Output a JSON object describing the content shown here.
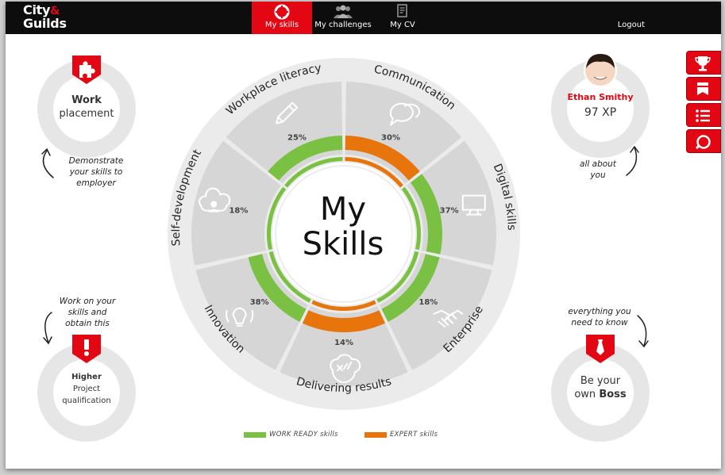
{
  "header": {
    "logo_top": "City",
    "logo_amp": "&",
    "logo_bottom": "Guilds",
    "tabs": [
      {
        "label": "My skills",
        "icon": "lifebuoy-icon",
        "active": true
      },
      {
        "label": "My challenges",
        "icon": "people-icon",
        "active": false
      },
      {
        "label": "My CV",
        "icon": "document-icon",
        "active": false
      }
    ],
    "logout_label": "Logout"
  },
  "colors": {
    "brand_red": "#e30613",
    "work_ready_green": "#7ac143",
    "expert_orange": "#e8740c",
    "segment_gray": "#d6d6d6",
    "ring_gray": "#ebebeb"
  },
  "wheel": {
    "center_line1": "My",
    "center_line2": "Skills",
    "segments": [
      {
        "name": "Communication",
        "percent": "30%",
        "value": 30,
        "type": "expert",
        "icon": "speech-bubble-icon"
      },
      {
        "name": "Digital skills",
        "percent": "37%",
        "value": 37,
        "type": "work_ready",
        "icon": "monitor-icon"
      },
      {
        "name": "Enterprise",
        "percent": "18%",
        "value": 18,
        "type": "work_ready",
        "icon": "handshake-icon"
      },
      {
        "name": "Delivering results",
        "percent": "14%",
        "value": 14,
        "type": "expert",
        "icon": "checklist-cloud-icon"
      },
      {
        "name": "Innovation",
        "percent": "38%",
        "value": 38,
        "type": "work_ready",
        "icon": "lightbulb-icon"
      },
      {
        "name": "Self-development",
        "percent": "18%",
        "value": 18,
        "type": "none",
        "icon": "brain-cloud-icon"
      },
      {
        "name": "Workplace literacy",
        "percent": "25%",
        "value": 25,
        "type": "work_ready",
        "icon": "pencil-icon"
      }
    ]
  },
  "legend": {
    "work_ready": "WORK READY skills",
    "expert": "EXPERT skills"
  },
  "badges": {
    "work_placement": {
      "line1": "Work",
      "line2": "placement",
      "icon": "puzzle-icon"
    },
    "higher": {
      "line1": "Higher",
      "line2": "Project",
      "line3": "qualification",
      "icon": "exclamation-icon"
    },
    "profile": {
      "name": "Ethan Smithy",
      "xp": "97 XP",
      "icon": "avatar"
    },
    "boss": {
      "line1": "Be your",
      "line2": "own",
      "line3": "Boss",
      "icon": "tie-icon"
    }
  },
  "notes": {
    "demonstrate": [
      "Demonstrate",
      "your skills to",
      "employer"
    ],
    "work_on": [
      "Work on your",
      "skills and",
      "obtain this"
    ],
    "all_about": [
      "all about",
      "you"
    ],
    "everything": [
      "everything you",
      "need to know"
    ]
  },
  "side_buttons": [
    "trophy-icon",
    "badge-icon",
    "list-icon",
    "search-icon"
  ]
}
